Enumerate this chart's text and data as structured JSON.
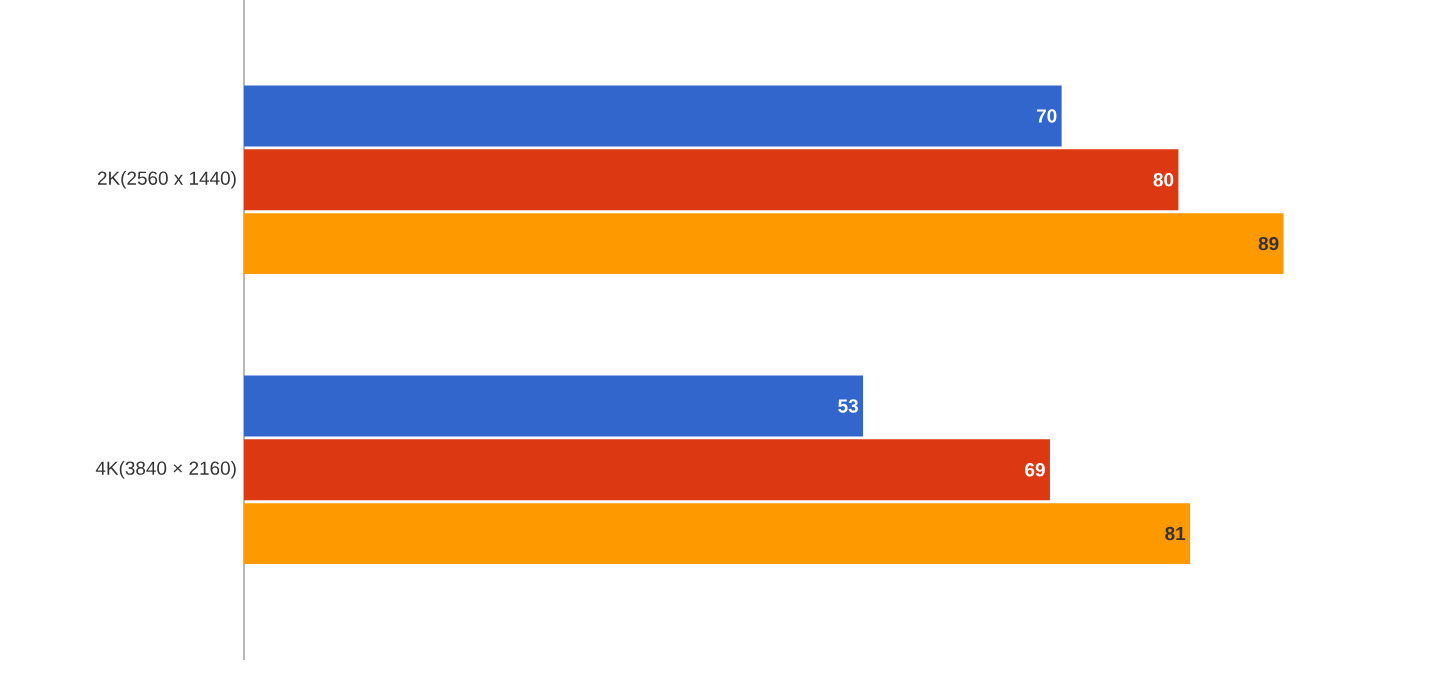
{
  "chart_data": {
    "type": "bar",
    "orientation": "horizontal",
    "categories": [
      "2K(2560 x 1440)",
      "4K(3840 × 2160)"
    ],
    "series": [
      {
        "color": "#3366cc",
        "values": [
          70,
          53
        ]
      },
      {
        "color": "#dc3912",
        "values": [
          80,
          69
        ]
      },
      {
        "color": "#ff9900",
        "values": [
          89,
          81
        ]
      }
    ],
    "data_labels": true,
    "tick_labels": "y"
  }
}
